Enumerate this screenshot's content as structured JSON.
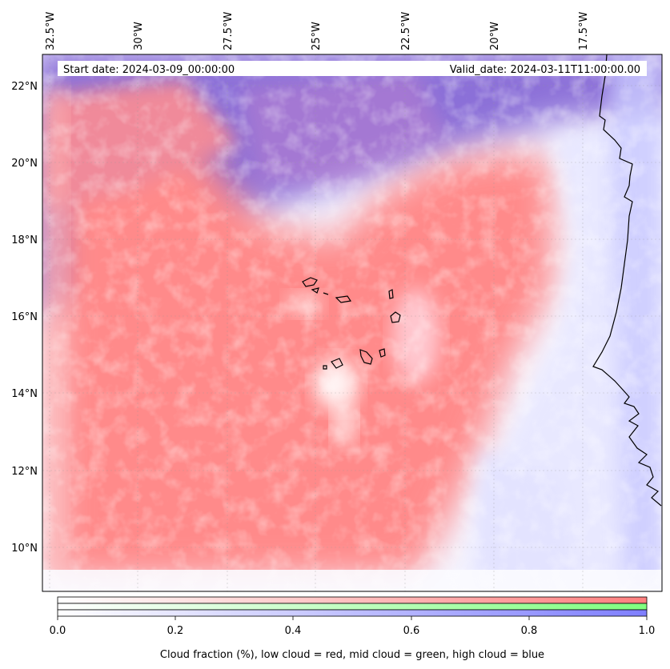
{
  "map": {
    "top_labels": [
      "32.5°W",
      "30°W",
      "27.5°W",
      "25°W",
      "22.5°W",
      "20°W",
      "17.5°W"
    ],
    "left_labels": [
      "22°N",
      "20°N",
      "18°N",
      "16°N",
      "14°N",
      "12°N",
      "10°N"
    ],
    "start_date": "Start date: 2024-03-09_00:00:00",
    "valid_date": "Valid_date: 2024-03-11T11:00:00.00"
  },
  "colorbar": {
    "ticks": [
      "0.0",
      "0.2",
      "0.4",
      "0.6",
      "0.8",
      "1.0"
    ],
    "caption": "Cloud fraction (%), low cloud = red, mid cloud = green, high cloud = blue",
    "colors": {
      "low": "#ff7f7f",
      "mid": "#7fff7f",
      "high": "#7f7fff"
    }
  }
}
